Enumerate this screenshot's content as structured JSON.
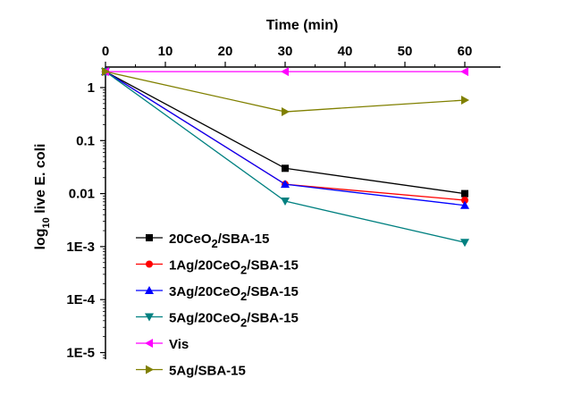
{
  "chart_data": {
    "type": "line",
    "xlabel": "Time (min)",
    "ylabel_main": "log",
    "ylabel_sub": "10",
    "ylabel_rest": " live E. coli",
    "x_axis_position": "top",
    "y_scale": "log",
    "xlim": [
      0,
      65
    ],
    "ylim": [
      5e-06,
      2
    ],
    "x_ticks": [
      0,
      10,
      20,
      30,
      40,
      50,
      60
    ],
    "x_tick_labels": [
      "0",
      "10",
      "20",
      "30",
      "40",
      "50",
      "60"
    ],
    "y_ticks": [
      1,
      0.1,
      0.01,
      0.001,
      0.0001,
      1e-05
    ],
    "y_tick_labels": [
      "1",
      "0.1",
      "0.01",
      "1E-3",
      "1E-4",
      "1E-5"
    ],
    "grid": false,
    "legend_placement": "bottom-left",
    "series": [
      {
        "name_main": "20CeO",
        "name_sub": "2",
        "name_rest": "/SBA-15",
        "color": "#000000",
        "marker": "square",
        "x": [
          0,
          30,
          60
        ],
        "y": [
          2,
          0.03,
          0.01
        ]
      },
      {
        "name_main": "1Ag/20CeO",
        "name_sub": "2",
        "name_rest": "/SBA-15",
        "color": "#ff0000",
        "marker": "circle",
        "x": [
          0,
          30,
          60
        ],
        "y": [
          2,
          0.015,
          0.0075
        ]
      },
      {
        "name_main": " 3Ag/20CeO",
        "name_sub": "2",
        "name_rest": "/SBA-15",
        "color": "#0000ff",
        "marker": "triangle-up",
        "x": [
          0,
          30,
          60
        ],
        "y": [
          2,
          0.015,
          0.006
        ]
      },
      {
        "name_main": "5Ag/20CeO",
        "name_sub": "2",
        "name_rest": "/SBA-15",
        "color": "#008080",
        "marker": "triangle-down",
        "x": [
          0,
          30,
          60
        ],
        "y": [
          2,
          0.0072,
          0.0012
        ]
      },
      {
        "name_main": "Vis",
        "name_sub": "",
        "name_rest": "",
        "color": "#ff00ff",
        "marker": "triangle-left",
        "x": [
          0,
          30,
          60
        ],
        "y": [
          2,
          2,
          2
        ]
      },
      {
        "name_main": "5Ag/SBA-15",
        "name_sub": "",
        "name_rest": "",
        "color": "#808000",
        "marker": "triangle-right",
        "x": [
          0,
          30,
          60
        ],
        "y": [
          2,
          0.35,
          0.58
        ]
      }
    ]
  }
}
